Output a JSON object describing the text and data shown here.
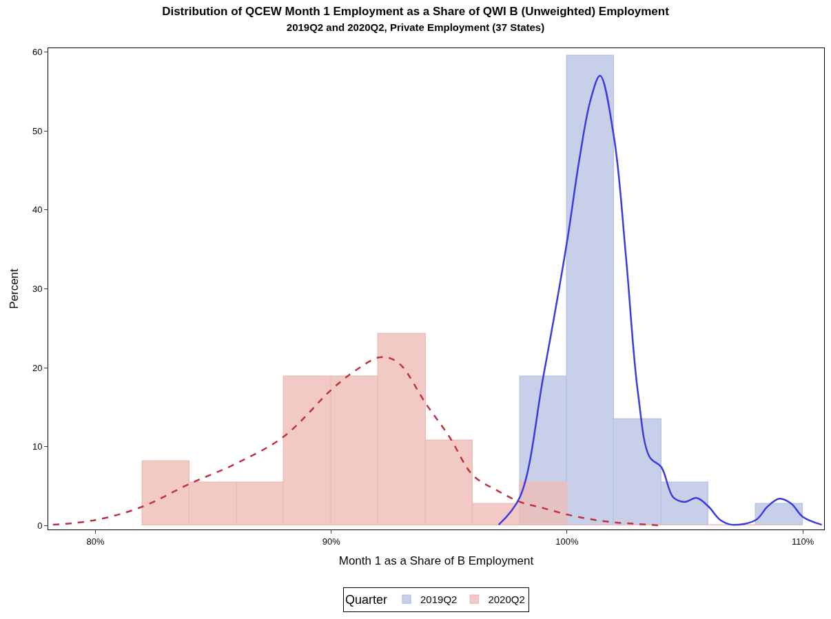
{
  "chart_data": {
    "type": "histogram",
    "title": "Distribution of QCEW Month 1 Employment as a Share of QWI B (Unweighted) Employment",
    "subtitle": "2019Q2 and 2020Q2, Private Employment (37 States)",
    "xlabel": "Month 1 as a Share of B Employment",
    "ylabel": "Percent",
    "legend_title": "Quarter",
    "bins": [
      82,
      84,
      86,
      88,
      90,
      92,
      94,
      96,
      98,
      100,
      102,
      104,
      106,
      108,
      110
    ],
    "series": [
      {
        "name": "2019Q2",
        "color": "#bac4e3",
        "values": [
          null,
          null,
          null,
          null,
          null,
          null,
          null,
          null,
          18.9,
          59.5,
          13.5,
          5.4,
          null,
          2.7
        ]
      },
      {
        "name": "2020Q2",
        "color": "#eebdb7",
        "values": [
          8.1,
          5.4,
          5.4,
          18.9,
          18.9,
          24.3,
          10.8,
          2.7,
          5.4,
          0,
          0,
          0,
          0,
          0
        ]
      },
      {
        "type": "line",
        "color": "#3a3ae0",
        "line_style": "solid",
        "x": [
          97.1,
          98,
          99,
          100,
          100.5,
          101,
          101.4,
          102,
          102.5,
          103,
          103.5,
          104,
          104.5,
          105,
          105.5,
          106,
          106.5,
          107,
          108,
          108.5,
          109,
          109.5,
          110,
          110.8
        ],
        "values": [
          0.1,
          3.6,
          19,
          36,
          46,
          54,
          57,
          49,
          34,
          17,
          8.7,
          7.4,
          3.6,
          3,
          3.5,
          2.4,
          0.7,
          0.1,
          0.7,
          2.4,
          3.4,
          2.8,
          1.1,
          0.1
        ]
      },
      {
        "type": "line",
        "color": "#c03040",
        "line_style": "dashed",
        "x": [
          78.2,
          80,
          82,
          84,
          86,
          88,
          90,
          91,
          92,
          92.5,
          93,
          94,
          95,
          96,
          97,
          98,
          99,
          100,
          101,
          102,
          103,
          104
        ],
        "values": [
          0.1,
          0.7,
          2.4,
          5.3,
          7.9,
          11.3,
          17.2,
          19.6,
          21.3,
          21.2,
          20.2,
          15.5,
          11.3,
          6.4,
          4.5,
          3,
          2.2,
          1.4,
          0.8,
          0.4,
          0.2,
          0
        ]
      }
    ],
    "xlim": [
      78,
      110.9
    ],
    "ylim": [
      -0.5,
      60.5
    ],
    "xticks": [
      {
        "value": 80,
        "label": "80%"
      },
      {
        "value": 90,
        "label": "90%"
      },
      {
        "value": 100,
        "label": "100%"
      },
      {
        "value": 110,
        "label": "110%"
      }
    ],
    "yticks": [
      0,
      10,
      20,
      30,
      40,
      50,
      60
    ],
    "legend": "bottom"
  }
}
